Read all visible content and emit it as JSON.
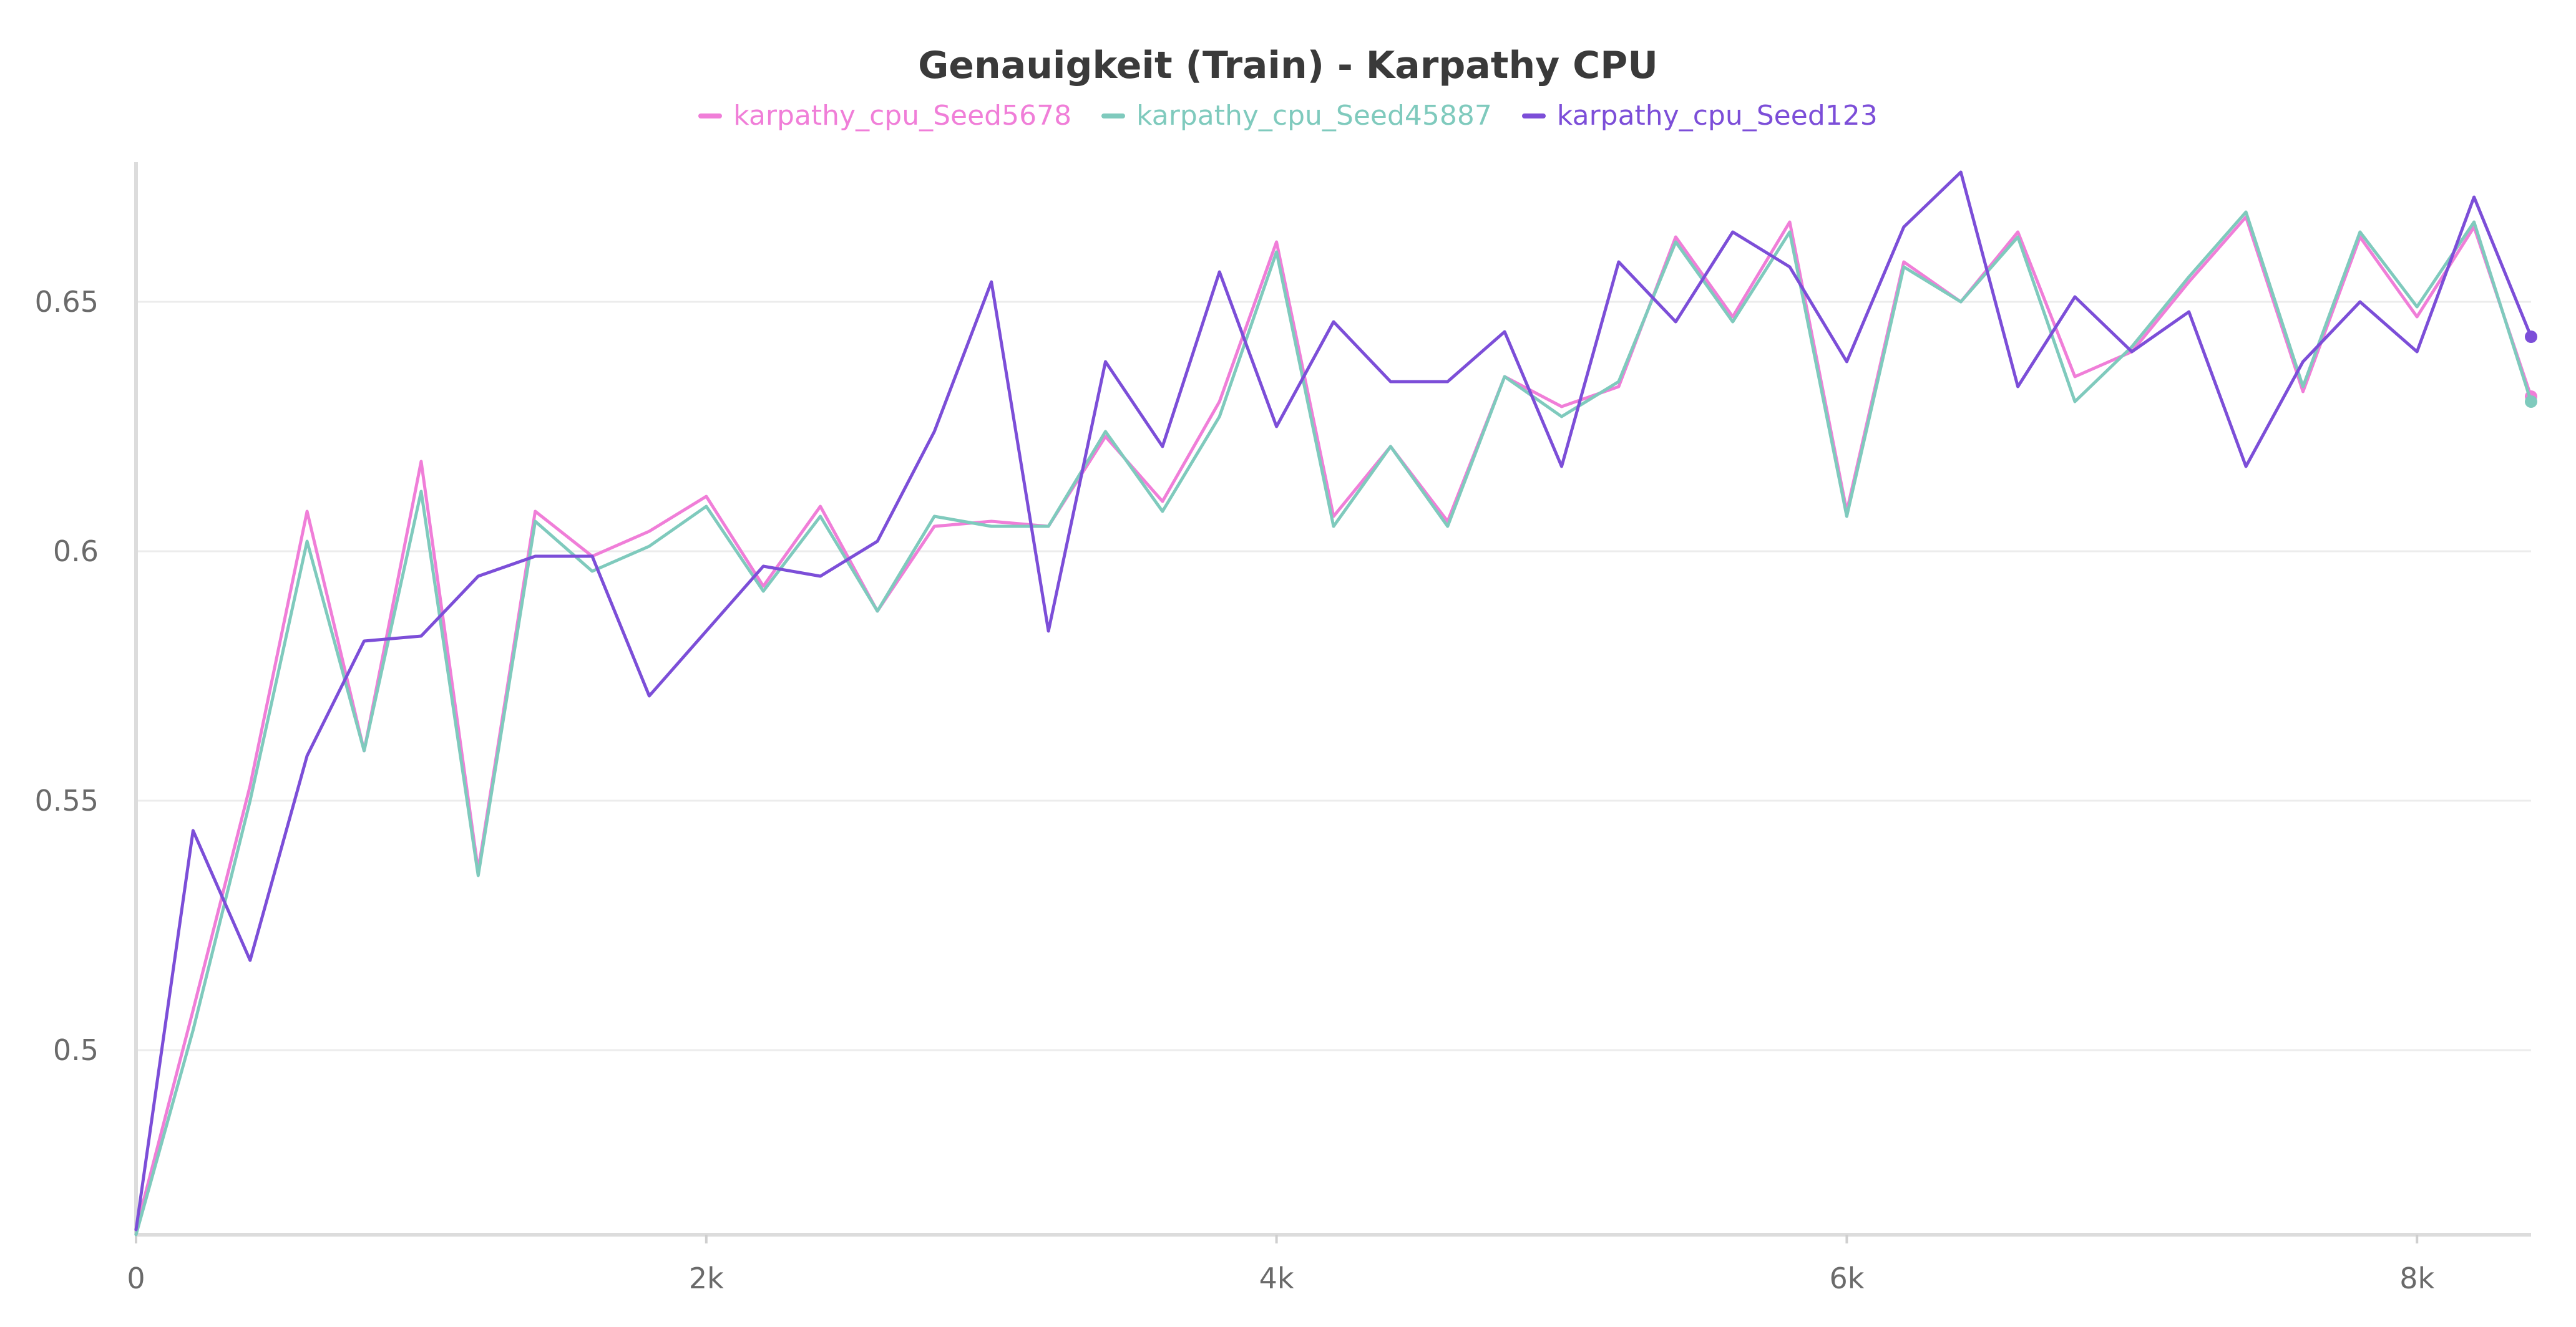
{
  "chart_data": {
    "type": "line",
    "title": "Genauigkeit (Train) - Karpathy CPU",
    "xlabel": "",
    "ylabel": "",
    "xlim": [
      0,
      8400
    ],
    "ylim": [
      0.463,
      0.678
    ],
    "x_ticks": [
      0,
      2000,
      4000,
      6000,
      8000
    ],
    "x_tick_labels": [
      "0",
      "2k",
      "4k",
      "6k",
      "8k"
    ],
    "y_ticks": [
      0.5,
      0.55,
      0.6,
      0.65
    ],
    "y_tick_labels": [
      "0.5",
      "0.55",
      "0.6",
      "0.65"
    ],
    "grid": true,
    "legend_position": "top-center",
    "x": [
      0,
      200,
      400,
      600,
      800,
      1000,
      1200,
      1400,
      1600,
      1800,
      2000,
      2200,
      2400,
      2600,
      2800,
      3000,
      3200,
      3400,
      3600,
      3800,
      4000,
      4200,
      4400,
      4600,
      4800,
      5000,
      5200,
      5400,
      5600,
      5800,
      6000,
      6200,
      6400,
      6600,
      6800,
      7000,
      7200,
      7400,
      7600,
      7800,
      8000,
      8200,
      8400
    ],
    "series": [
      {
        "name": "karpathy_cpu_Seed5678",
        "color": "#f07ed8",
        "values": [
          0.464,
          0.508,
          0.553,
          0.608,
          0.56,
          0.618,
          0.536,
          0.608,
          0.599,
          0.604,
          0.611,
          0.593,
          0.609,
          0.588,
          0.605,
          0.606,
          0.605,
          0.623,
          0.61,
          0.63,
          0.662,
          0.607,
          0.621,
          0.606,
          0.635,
          0.629,
          0.633,
          0.663,
          0.647,
          0.666,
          0.608,
          0.658,
          0.65,
          0.664,
          0.635,
          0.64,
          0.654,
          0.667,
          0.632,
          0.663,
          0.647,
          0.665,
          0.631
        ]
      },
      {
        "name": "karpathy_cpu_Seed45887",
        "color": "#7fcabd",
        "values": [
          0.463,
          0.504,
          0.55,
          0.602,
          0.56,
          0.612,
          0.535,
          0.606,
          0.596,
          0.601,
          0.609,
          0.592,
          0.607,
          0.588,
          0.607,
          0.605,
          0.605,
          0.624,
          0.608,
          0.627,
          0.66,
          0.605,
          0.621,
          0.605,
          0.635,
          0.627,
          0.634,
          0.662,
          0.646,
          0.664,
          0.607,
          0.657,
          0.65,
          0.663,
          0.63,
          0.641,
          0.655,
          0.668,
          0.633,
          0.664,
          0.649,
          0.666,
          0.63
        ]
      },
      {
        "name": "karpathy_cpu_Seed123",
        "color": "#7c4ed8",
        "values": [
          0.464,
          0.544,
          0.518,
          0.559,
          0.582,
          0.583,
          0.595,
          0.599,
          0.599,
          0.571,
          0.584,
          0.597,
          0.595,
          0.602,
          0.624,
          0.654,
          0.584,
          0.638,
          0.621,
          0.656,
          0.625,
          0.646,
          0.634,
          0.634,
          0.644,
          0.617,
          0.658,
          0.646,
          0.664,
          0.657,
          0.638,
          0.665,
          0.676,
          0.633,
          0.651,
          0.64,
          0.648,
          0.617,
          0.638,
          0.65,
          0.64,
          0.671,
          0.643
        ]
      }
    ]
  }
}
